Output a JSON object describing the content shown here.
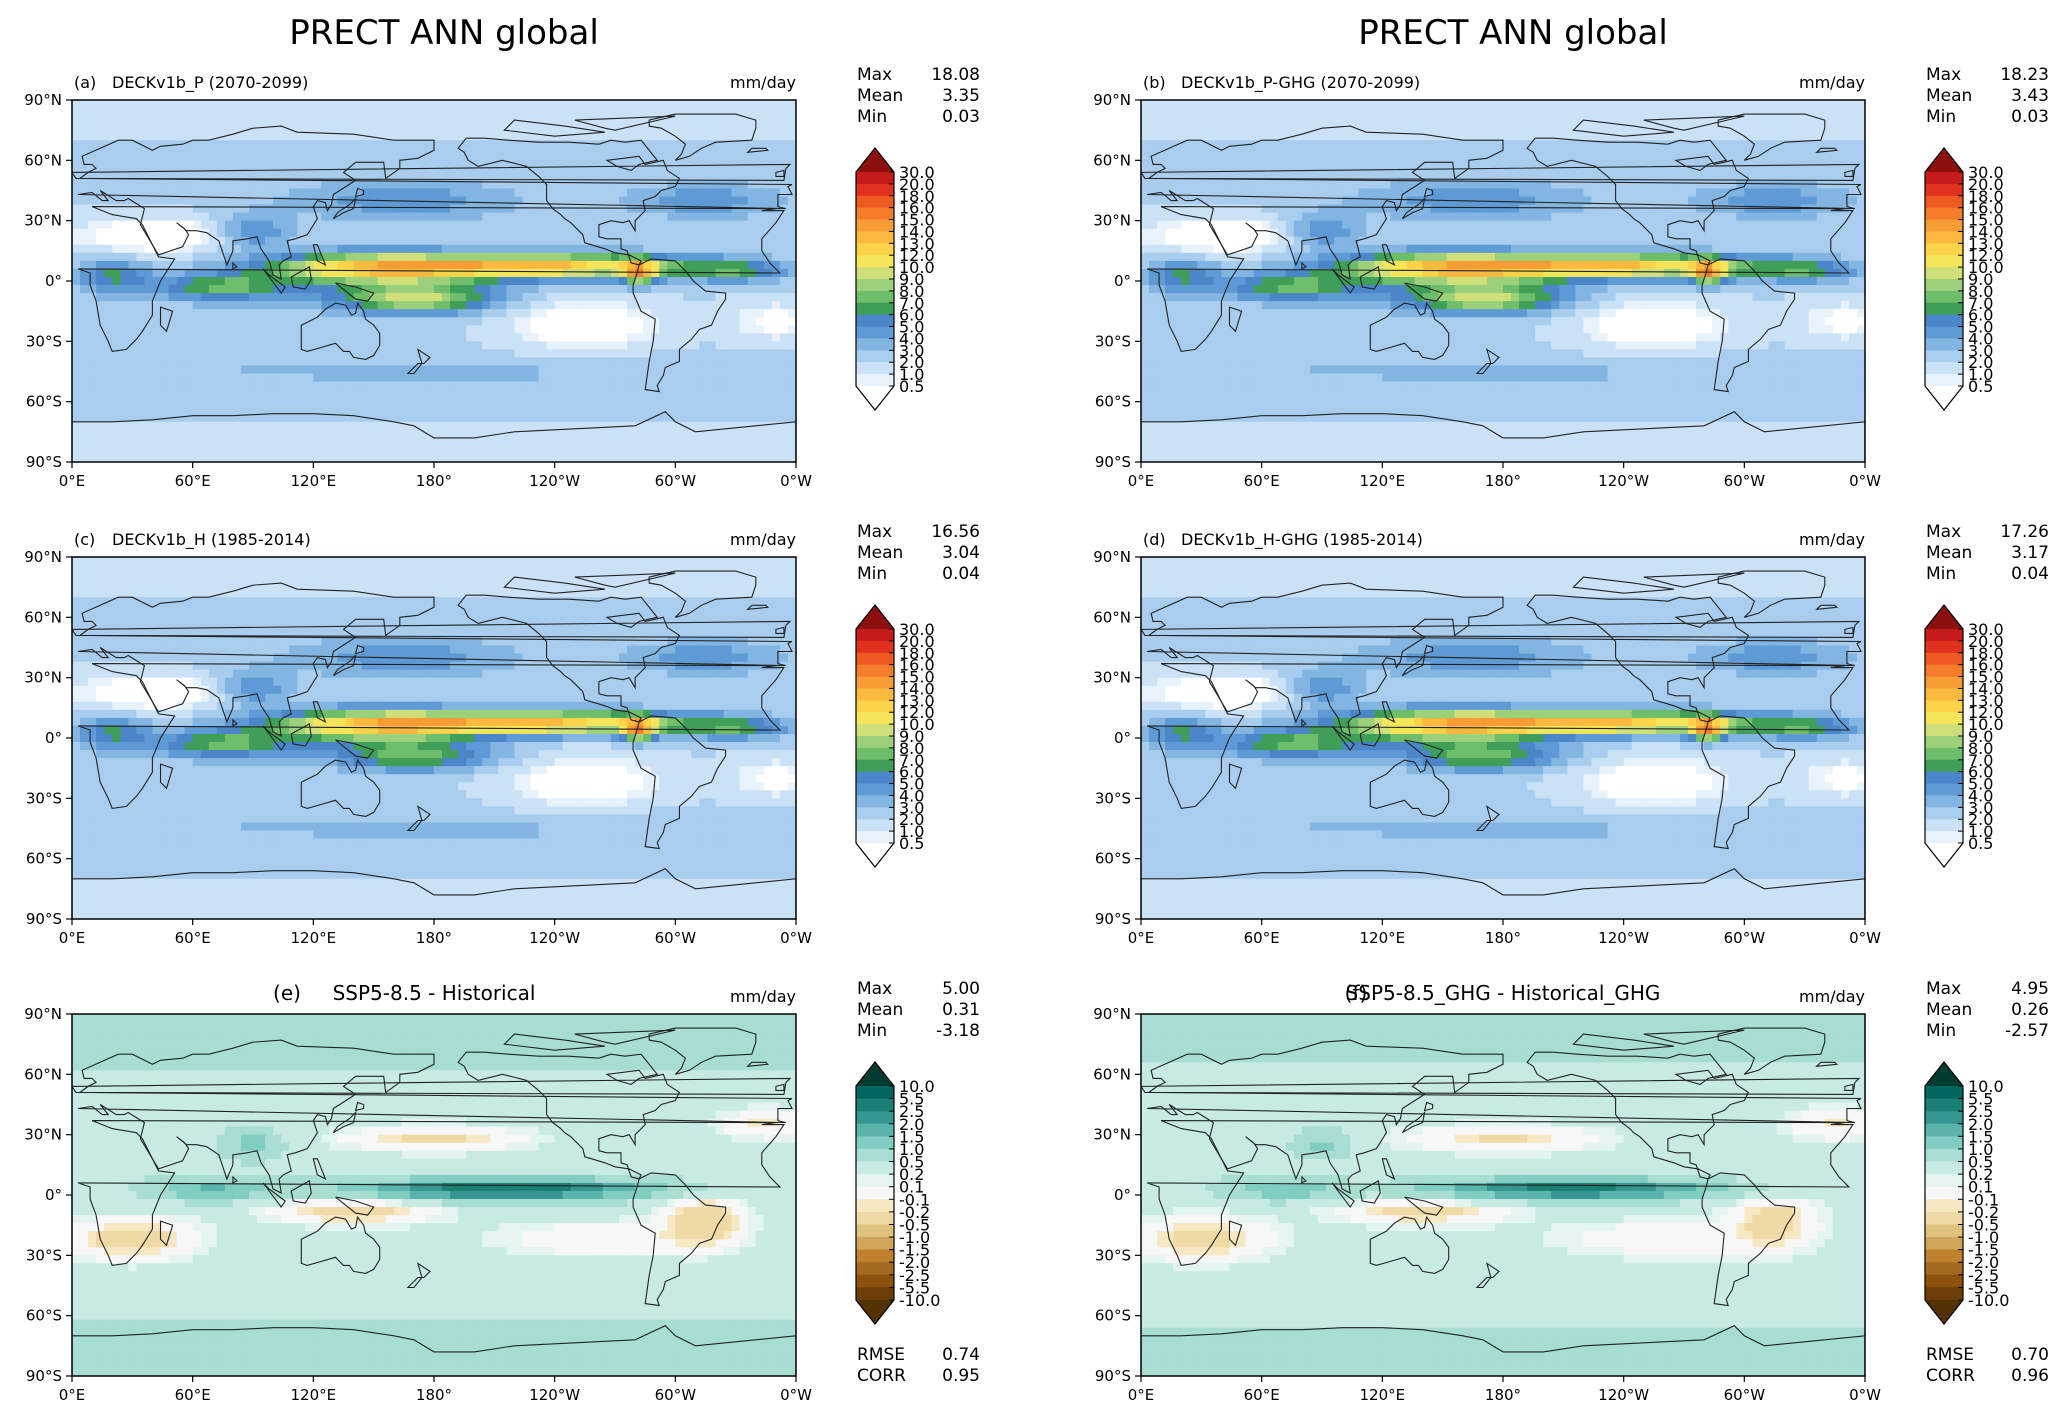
{
  "figure": {
    "column_titles": [
      "PRECT ANN global",
      "PRECT ANN global"
    ]
  },
  "axes": {
    "lat_ticks": [
      "90°N",
      "60°N",
      "30°N",
      "0°",
      "30°S",
      "60°S",
      "90°S"
    ],
    "lon_ticks": [
      "0°E",
      "60°E",
      "120°E",
      "180°",
      "120°W",
      "60°W",
      "0°W"
    ]
  },
  "panels": [
    {
      "id": "a",
      "label": "(a)",
      "title": "DECKv1b_P (2070-2099)",
      "title_centered": false,
      "units": "mm/day",
      "kind": "precip",
      "stats": [
        [
          "Max",
          "18.08"
        ],
        [
          "Mean",
          "3.35"
        ],
        [
          "Min",
          "0.03"
        ]
      ],
      "extra_stats": []
    },
    {
      "id": "b",
      "label": "(b)",
      "title": "DECKv1b_P-GHG (2070-2099)",
      "title_centered": false,
      "units": "mm/day",
      "kind": "precip",
      "stats": [
        [
          "Max",
          "18.23"
        ],
        [
          "Mean",
          "3.43"
        ],
        [
          "Min",
          "0.03"
        ]
      ],
      "extra_stats": []
    },
    {
      "id": "c",
      "label": "(c)",
      "title": "DECKv1b_H (1985-2014)",
      "title_centered": false,
      "units": "mm/day",
      "kind": "precip",
      "stats": [
        [
          "Max",
          "16.56"
        ],
        [
          "Mean",
          "3.04"
        ],
        [
          "Min",
          "0.04"
        ]
      ],
      "extra_stats": []
    },
    {
      "id": "d",
      "label": "(d)",
      "title": "DECKv1b_H-GHG (1985-2014)",
      "title_centered": false,
      "units": "mm/day",
      "kind": "precip",
      "stats": [
        [
          "Max",
          "17.26"
        ],
        [
          "Mean",
          "3.17"
        ],
        [
          "Min",
          "0.04"
        ]
      ],
      "extra_stats": []
    },
    {
      "id": "e",
      "label": "(e)",
      "title": "SSP5-8.5 - Historical",
      "title_centered": true,
      "units": "mm/day",
      "kind": "diff",
      "stats": [
        [
          "Max",
          "5.00"
        ],
        [
          "Mean",
          "0.31"
        ],
        [
          "Min",
          "-3.18"
        ]
      ],
      "extra_stats": [
        [
          "RMSE",
          "0.74"
        ],
        [
          "CORR",
          "0.95"
        ]
      ]
    },
    {
      "id": "f",
      "label": "(f)",
      "title": "SSP5-8.5_GHG - Historical_GHG",
      "title_centered": true,
      "units": "mm/day",
      "kind": "diff",
      "stats": [
        [
          "Max",
          "4.95"
        ],
        [
          "Mean",
          "0.26"
        ],
        [
          "Min",
          "-2.57"
        ]
      ],
      "extra_stats": [
        [
          "RMSE",
          "0.70"
        ],
        [
          "CORR",
          "0.96"
        ]
      ]
    }
  ],
  "colorbars": {
    "precip": {
      "levels": [
        "30.0",
        "20.0",
        "18.0",
        "16.0",
        "15.0",
        "14.0",
        "13.0",
        "12.0",
        "10.0",
        "9.0",
        "8.0",
        "7.0",
        "6.0",
        "5.0",
        "4.0",
        "3.0",
        "2.0",
        "1.0",
        "0.5"
      ],
      "colors": [
        "#8c1010",
        "#c51b1b",
        "#e0301e",
        "#ef5a22",
        "#f47c2a",
        "#f89c35",
        "#fbb93f",
        "#fdd34a",
        "#f5e55a",
        "#cfe07a",
        "#9dd07b",
        "#6dbd6a",
        "#3f9f58",
        "#4a86c8",
        "#5d9ad6",
        "#82b5e2",
        "#a8cdee",
        "#cbe2f6",
        "#e7f2fb",
        "#ffffff"
      ]
    },
    "diff": {
      "levels": [
        "10.0",
        "5.5",
        "2.5",
        "2.0",
        "1.5",
        "1.0",
        "0.5",
        "0.2",
        "0.1",
        "-0.1",
        "-0.2",
        "-0.5",
        "-1.0",
        "-1.5",
        "-2.0",
        "-2.5",
        "-5.5",
        "-10.0"
      ],
      "colors": [
        "#003c30",
        "#01665e",
        "#1b7f74",
        "#35978f",
        "#5ab4ac",
        "#80cdc1",
        "#a7ddd2",
        "#c7eae5",
        "#e3f4f1",
        "#f7f7f7",
        "#f6e8c3",
        "#efd9a4",
        "#dfc27d",
        "#cfa55a",
        "#bf812d",
        "#a36a1f",
        "#8c510a",
        "#6b3d07",
        "#543005"
      ]
    }
  }
}
